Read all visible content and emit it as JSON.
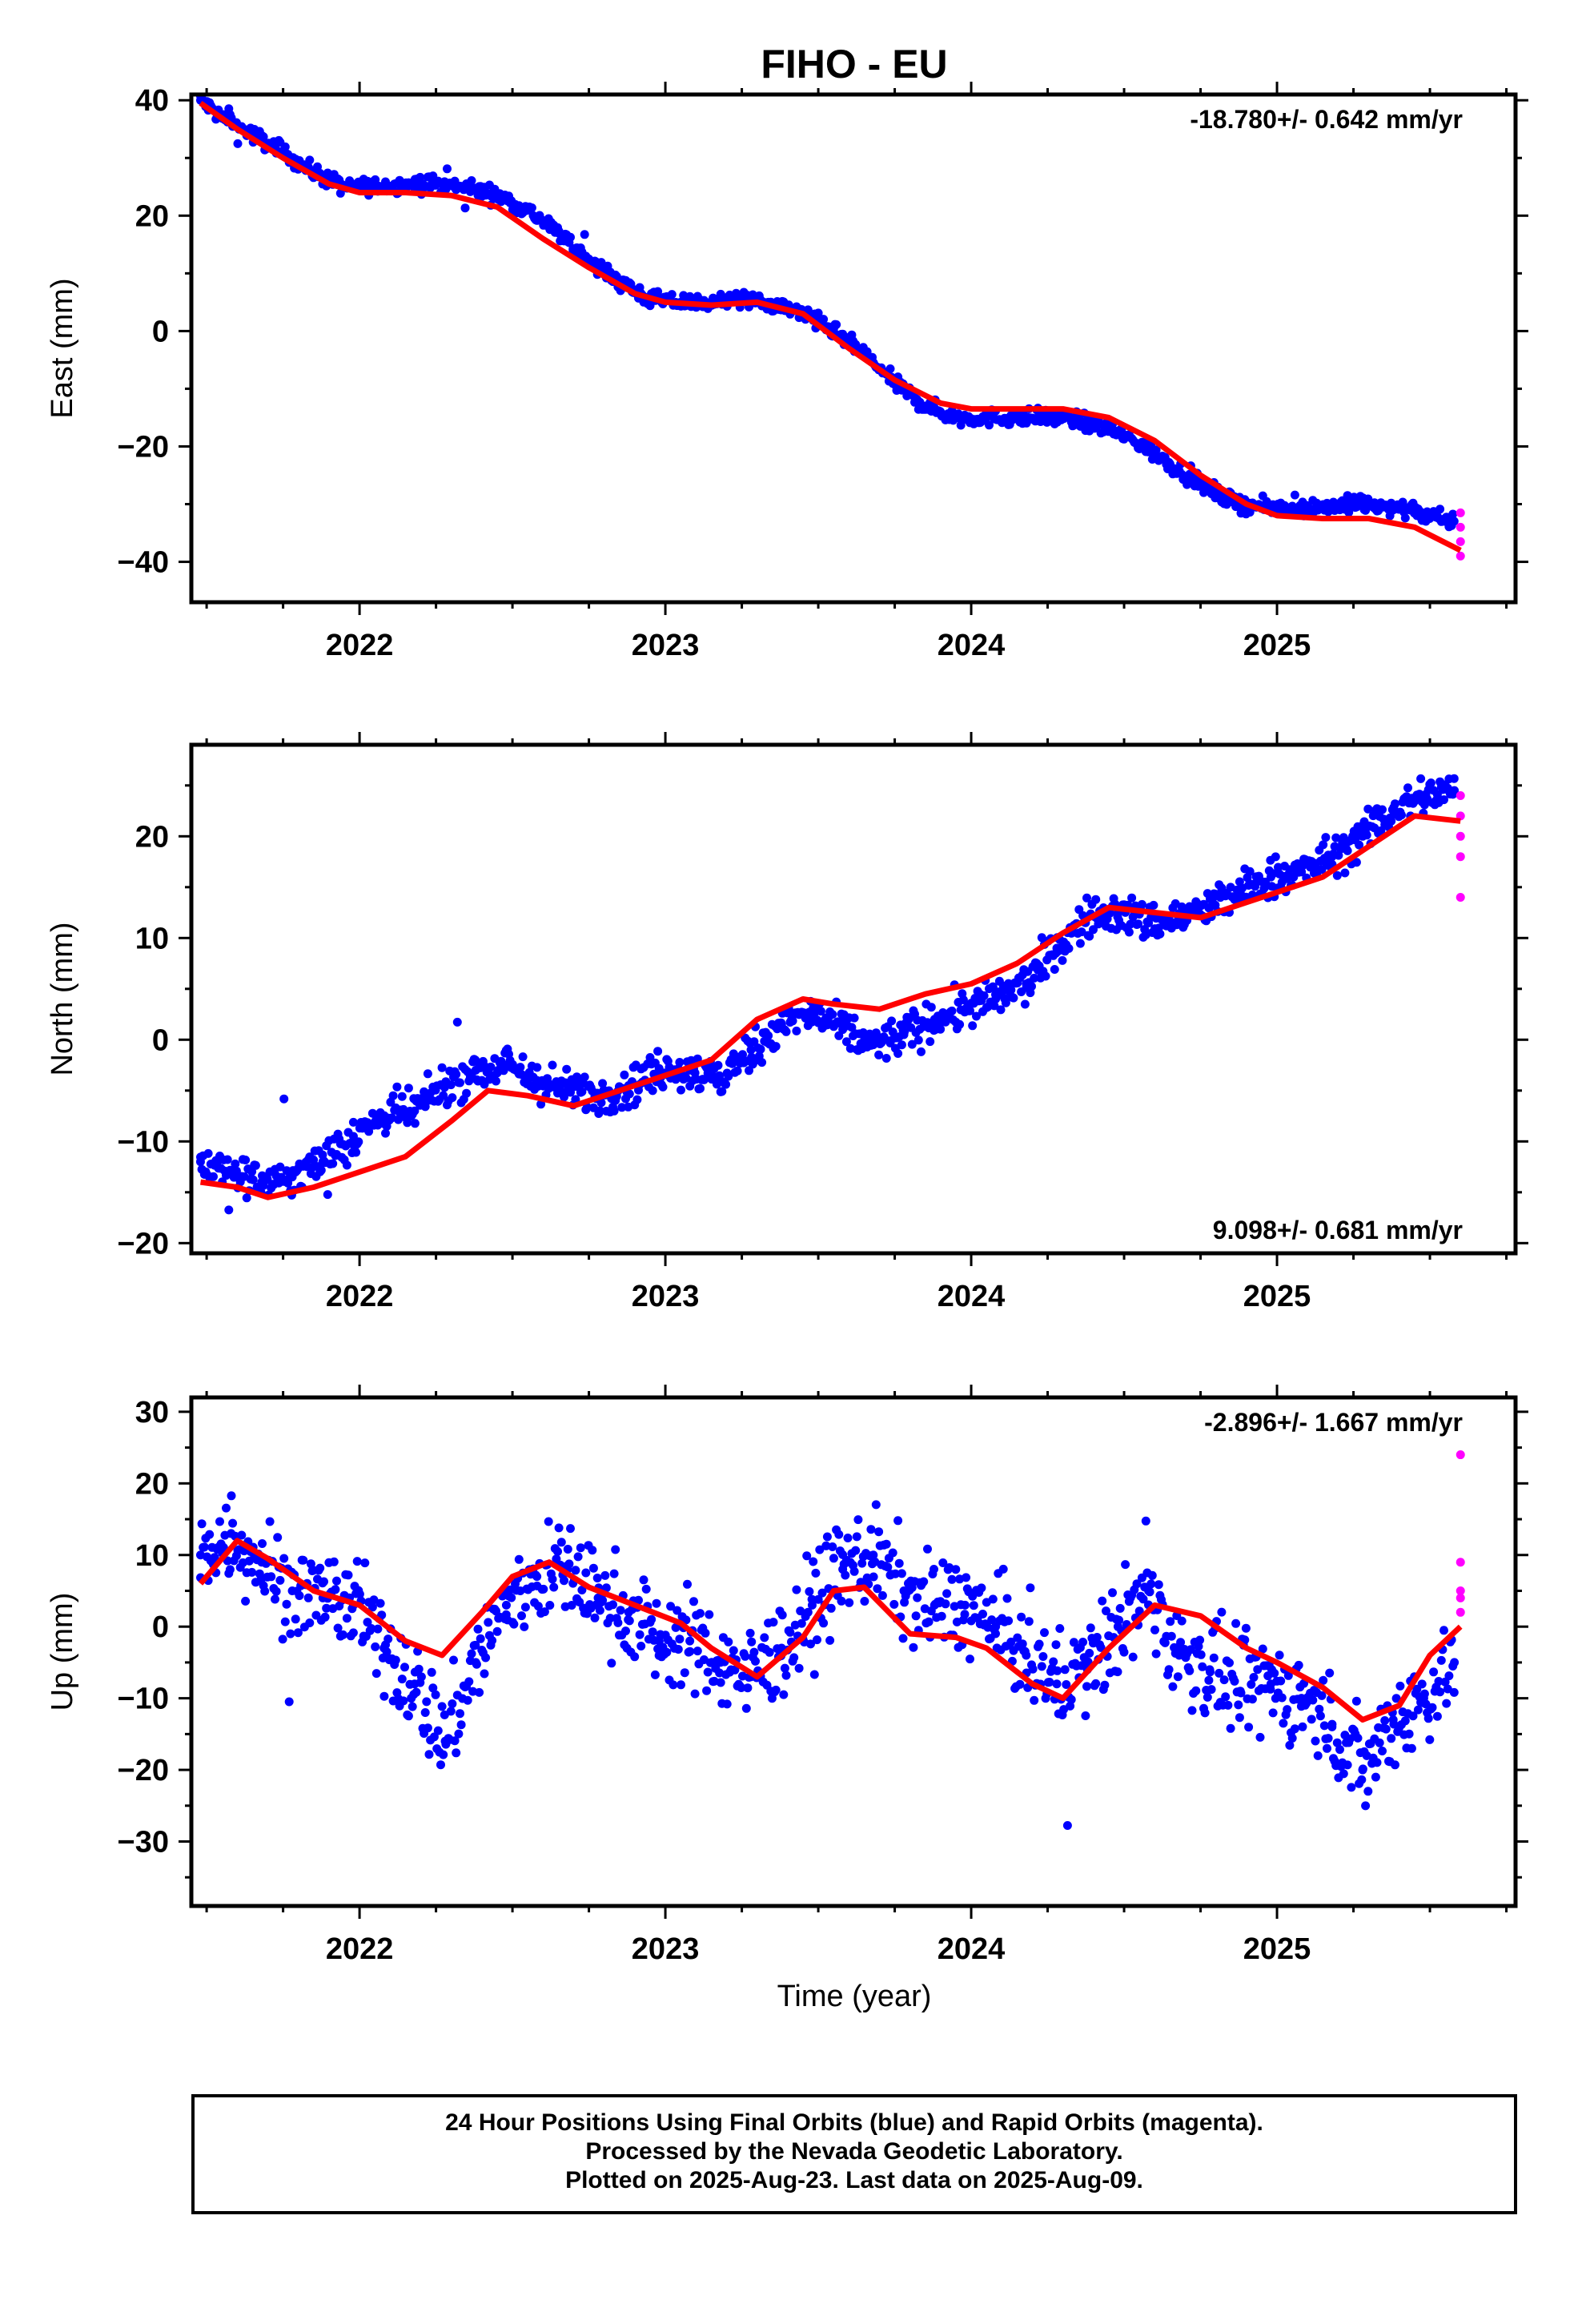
{
  "title": "FIHO - EU",
  "x_axis_label": "Time (year)",
  "footer": {
    "line1": "24 Hour Positions Using Final Orbits (blue) and Rapid Orbits (magenta).",
    "line2": "Processed by the Nevada Geodetic Laboratory.",
    "line3": "Plotted on 2025-Aug-23. Last data on 2025-Aug-09."
  },
  "colors": {
    "final": "#0000ff",
    "rapid": "#ff00ff",
    "fit": "#ff0000",
    "axis": "#000000"
  },
  "chart_data": [
    {
      "type": "scatter",
      "ylabel": "East (mm)",
      "xlim": [
        2021.45,
        2025.78
      ],
      "ylim": [
        -47,
        41
      ],
      "yticks": [
        -40,
        -20,
        0,
        20,
        40
      ],
      "xticks": [
        2022,
        2023,
        2024,
        2025
      ],
      "rate_label": "-18.780+/- 0.642 mm/yr",
      "rate_position": "top-right",
      "fit_series": {
        "x": [
          2021.48,
          2021.6,
          2021.75,
          2021.9,
          2022.0,
          2022.15,
          2022.3,
          2022.45,
          2022.6,
          2022.75,
          2022.9,
          2023.0,
          2023.15,
          2023.3,
          2023.45,
          2023.6,
          2023.75,
          2023.9,
          2024.0,
          2024.15,
          2024.3,
          2024.45,
          2024.6,
          2024.75,
          2024.9,
          2025.0,
          2025.15,
          2025.3,
          2025.45,
          2025.6
        ],
        "y": [
          39.5,
          35,
          30,
          25.5,
          24,
          24,
          23.5,
          21.5,
          16,
          11,
          6.5,
          5,
          4.5,
          5,
          3,
          -3,
          -8.5,
          -12.5,
          -13.5,
          -13.5,
          -13.5,
          -15,
          -19,
          -25,
          -30,
          -32,
          -32.5,
          -32.5,
          -34,
          -38
        ]
      },
      "final_samples": {
        "x": [
          2021.48,
          2021.55,
          2021.65,
          2021.75,
          2021.85,
          2021.95,
          2022.05,
          2022.15,
          2022.25,
          2022.35,
          2022.45,
          2022.55,
          2022.65,
          2022.75,
          2022.85,
          2022.95,
          2023.05,
          2023.15,
          2023.25,
          2023.35,
          2023.45,
          2023.55,
          2023.65,
          2023.75,
          2023.85,
          2023.95,
          2024.05,
          2024.15,
          2024.25,
          2024.35,
          2024.45,
          2024.55,
          2024.65,
          2024.75,
          2024.85,
          2024.95,
          2025.05,
          2025.15,
          2025.25,
          2025.35,
          2025.45,
          2025.55
        ],
        "y": [
          40,
          37,
          34,
          31,
          27.5,
          25,
          25,
          25.5,
          25.5,
          25,
          23.5,
          21,
          17,
          12.5,
          8.5,
          5.5,
          5,
          5,
          5.5,
          4.5,
          3,
          0,
          -4,
          -9,
          -13,
          -15,
          -15,
          -15,
          -15,
          -15.5,
          -17,
          -19.5,
          -23,
          -26.5,
          -29.5,
          -30.5,
          -30.5,
          -30.5,
          -30,
          -30.5,
          -31,
          -33
        ]
      },
      "rapid_samples": {
        "x": [
          2025.6,
          2025.6,
          2025.6,
          2025.6
        ],
        "y": [
          -31.5,
          -34,
          -36.5,
          -39
        ]
      }
    },
    {
      "type": "scatter",
      "ylabel": "North (mm)",
      "xlim": [
        2021.45,
        2025.78
      ],
      "ylim": [
        -21,
        29
      ],
      "yticks": [
        -20,
        -10,
        0,
        10,
        20
      ],
      "xticks": [
        2022,
        2023,
        2024,
        2025
      ],
      "rate_label": "9.098+/- 0.681 mm/yr",
      "rate_position": "bottom-right",
      "fit_series": {
        "x": [
          2021.48,
          2021.6,
          2021.7,
          2021.85,
          2022.0,
          2022.15,
          2022.3,
          2022.42,
          2022.55,
          2022.7,
          2022.85,
          2023.0,
          2023.15,
          2023.3,
          2023.45,
          2023.55,
          2023.7,
          2023.85,
          2024.0,
          2024.15,
          2024.3,
          2024.45,
          2024.6,
          2024.75,
          2024.9,
          2025.0,
          2025.15,
          2025.3,
          2025.45,
          2025.6
        ],
        "y": [
          -14,
          -14.5,
          -15.5,
          -14.5,
          -13,
          -11.5,
          -8,
          -5,
          -5.5,
          -6.5,
          -5,
          -3.5,
          -2,
          2,
          4,
          3.5,
          3,
          4.5,
          5.5,
          7.5,
          10.5,
          13,
          12.5,
          12,
          13.5,
          14.5,
          16,
          19,
          22,
          21.5
        ]
      },
      "final_samples": {
        "x": [
          2021.48,
          2021.58,
          2021.68,
          2021.78,
          2021.88,
          2021.98,
          2022.08,
          2022.18,
          2022.28,
          2022.38,
          2022.48,
          2022.58,
          2022.68,
          2022.78,
          2022.88,
          2022.98,
          2023.08,
          2023.18,
          2023.28,
          2023.38,
          2023.48,
          2023.58,
          2023.68,
          2023.78,
          2023.88,
          2023.98,
          2024.08,
          2024.18,
          2024.28,
          2024.38,
          2024.48,
          2024.58,
          2024.68,
          2024.78,
          2024.88,
          2024.98,
          2025.08,
          2025.18,
          2025.28,
          2025.38,
          2025.48,
          2025.58
        ],
        "y": [
          -12,
          -13,
          -14,
          -13.5,
          -12,
          -9.5,
          -7.5,
          -7,
          -4.5,
          -3,
          -2.5,
          -4,
          -5,
          -5.5,
          -4.5,
          -3,
          -3,
          -4,
          -1,
          1.5,
          2.5,
          1,
          -0.5,
          0.5,
          2,
          3,
          4,
          5.5,
          9,
          12,
          12.5,
          11.5,
          12,
          13,
          14.5,
          16,
          16.5,
          18,
          20,
          22.5,
          24,
          24.5
        ]
      },
      "rapid_samples": {
        "x": [
          2025.6,
          2025.6,
          2025.6,
          2025.6,
          2025.6
        ],
        "y": [
          24,
          22,
          20,
          18,
          14
        ]
      }
    },
    {
      "type": "scatter",
      "ylabel": "Up (mm)",
      "xlim": [
        2021.45,
        2025.78
      ],
      "ylim": [
        -39,
        32
      ],
      "yticks": [
        -30,
        -20,
        -10,
        0,
        10,
        20,
        30
      ],
      "xticks": [
        2022,
        2023,
        2024,
        2025
      ],
      "rate_label": "-2.896+/- 1.667 mm/yr",
      "rate_position": "top-right",
      "fit_series": {
        "x": [
          2021.48,
          2021.6,
          2021.7,
          2021.85,
          2022.0,
          2022.15,
          2022.27,
          2022.4,
          2022.5,
          2022.62,
          2022.75,
          2022.9,
          2023.05,
          2023.15,
          2023.3,
          2023.45,
          2023.55,
          2023.65,
          2023.8,
          2023.95,
          2024.05,
          2024.2,
          2024.3,
          2024.45,
          2024.6,
          2024.75,
          2024.9,
          2025.0,
          2025.15,
          2025.28,
          2025.4,
          2025.5,
          2025.6
        ],
        "y": [
          6,
          12,
          9.5,
          5,
          3,
          -2,
          -4,
          2,
          7,
          9,
          5.5,
          3,
          0.5,
          -3,
          -7,
          -1.5,
          5,
          5.5,
          -1,
          -1.5,
          -3,
          -8,
          -10,
          -3,
          3,
          1.5,
          -3,
          -5,
          -8.5,
          -13,
          -11,
          -4,
          0
        ]
      },
      "final_samples": {
        "x": [
          2021.48,
          2021.58,
          2021.68,
          2021.78,
          2021.88,
          2021.98,
          2022.08,
          2022.18,
          2022.28,
          2022.38,
          2022.48,
          2022.58,
          2022.68,
          2022.78,
          2022.88,
          2022.98,
          2023.08,
          2023.18,
          2023.28,
          2023.38,
          2023.48,
          2023.58,
          2023.68,
          2023.78,
          2023.88,
          2023.98,
          2024.08,
          2024.18,
          2024.28,
          2024.38,
          2024.48,
          2024.58,
          2024.68,
          2024.78,
          2024.88,
          2024.98,
          2025.08,
          2025.18,
          2025.28,
          2025.38,
          2025.48,
          2025.58
        ],
        "y": [
          10,
          13,
          9,
          5,
          4,
          3,
          -3,
          -8,
          -16,
          -5,
          3,
          7,
          8,
          4,
          2,
          -2,
          -2,
          -5,
          -7,
          -3,
          3,
          8,
          10,
          5,
          3,
          3,
          0,
          -4,
          -8,
          -6,
          0,
          5,
          -4,
          -6,
          -9,
          -8,
          -10,
          -14,
          -20,
          -13,
          -10,
          -5
        ]
      },
      "rapid_samples": {
        "x": [
          2025.6,
          2025.6,
          2025.6,
          2025.6,
          2025.6
        ],
        "y": [
          24,
          9,
          5,
          4,
          2
        ]
      }
    }
  ]
}
